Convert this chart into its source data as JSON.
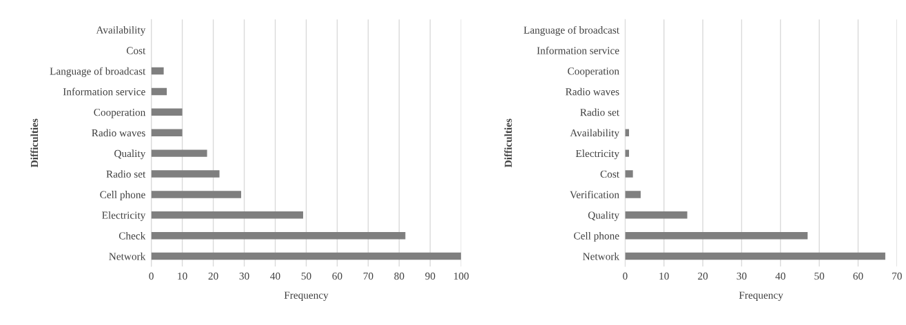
{
  "chart_data": [
    {
      "type": "bar",
      "orientation": "horizontal",
      "xlabel": "Frequency",
      "ylabel": "Difficulties",
      "categories": [
        "Availability",
        "Cost",
        "Language of broadcast",
        "Information service",
        "Cooperation",
        "Radio waves",
        "Quality",
        "Radio set",
        "Cell phone",
        "Electricity",
        "Check",
        "Network"
      ],
      "values": [
        0,
        0,
        4,
        5,
        10,
        10,
        18,
        22,
        29,
        49,
        82,
        100
      ],
      "color": "#7f7f7f",
      "xlim": [
        0,
        100
      ],
      "xticks": [
        0,
        10,
        20,
        30,
        40,
        50,
        60,
        70,
        80,
        90,
        100
      ],
      "grid": "x",
      "legend": false
    },
    {
      "type": "bar",
      "orientation": "horizontal",
      "xlabel": "Frequency",
      "ylabel": "Difficulties",
      "categories": [
        "Language of broadcast",
        "Information service",
        "Cooperation",
        "Radio waves",
        "Radio set",
        "Availability",
        "Electricity",
        "Cost",
        "Verification",
        "Quality",
        "Cell phone",
        "Network"
      ],
      "values": [
        0,
        0,
        0,
        0,
        0,
        1,
        1,
        2,
        4,
        16,
        47,
        67
      ],
      "color": "#7f7f7f",
      "xlim": [
        0,
        70
      ],
      "xticks": [
        0,
        10,
        20,
        30,
        40,
        50,
        60,
        70
      ],
      "grid": "x",
      "legend": false
    }
  ]
}
